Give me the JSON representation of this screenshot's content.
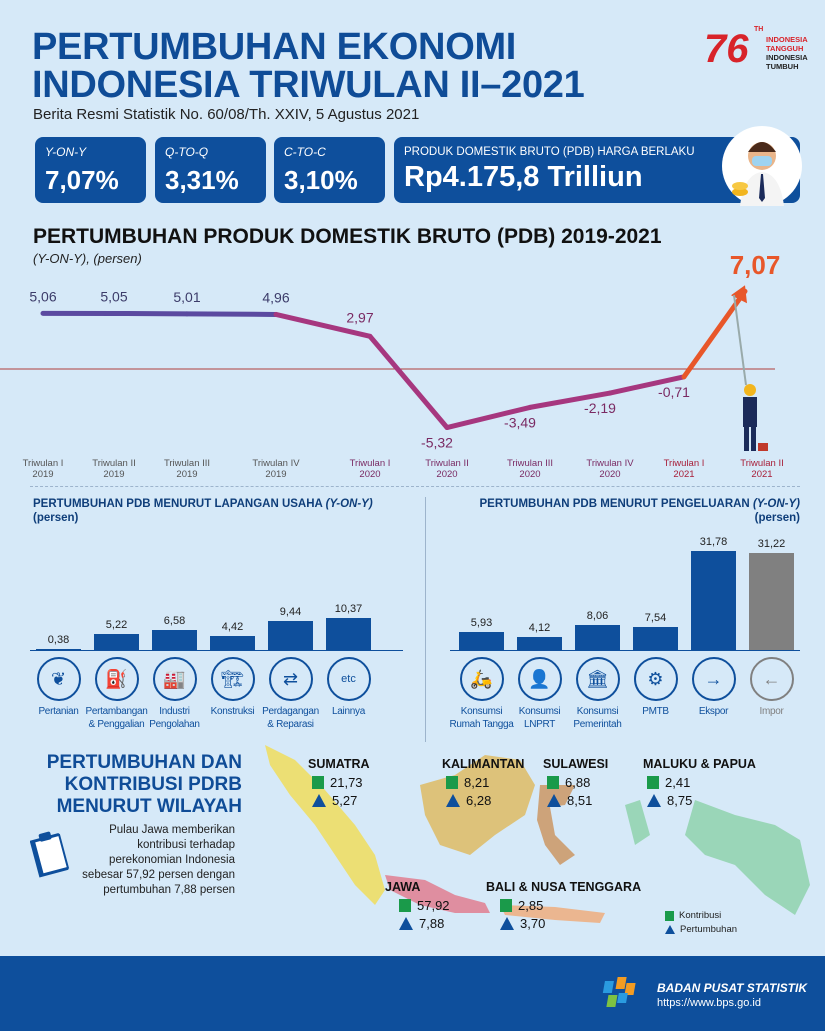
{
  "header": {
    "title_line1": "PERTUMBUHAN EKONOMI",
    "title_line2": "INDONESIA TRIWULAN II–2021",
    "subtitle": "Berita Resmi Statistik No. 60/08/Th. XXIV, 5 Agustus 2021",
    "logo": {
      "number": "76",
      "th": "TH",
      "line1": "INDONESIA",
      "line2": "TANGGUH",
      "line3": "INDONESIA",
      "line4": "TUMBUH"
    }
  },
  "cards": [
    {
      "label": "Y-ON-Y",
      "value": "7,07%"
    },
    {
      "label": "Q-TO-Q",
      "value": "3,31%"
    },
    {
      "label": "C-TO-C",
      "value": "3,10%"
    },
    {
      "label": "PRODUK DOMESTIK BRUTO (PDB) HARGA BERLAKU",
      "value": "Rp4.175,8 Trilliun"
    }
  ],
  "chart_data": [
    {
      "type": "line",
      "title": "PERTUMBUHAN PRODUK DOMESTIK BRUTO (PDB) 2019-2021",
      "subtitle": "(Y-ON-Y), (persen)",
      "categories": [
        [
          "Triwulan I",
          "2019"
        ],
        [
          "Triwulan II",
          "2019"
        ],
        [
          "Triwulan III",
          "2019"
        ],
        [
          "Triwulan IV",
          "2019"
        ],
        [
          "Triwulan I",
          "2020"
        ],
        [
          "Triwulan II",
          "2020"
        ],
        [
          "Triwulan III",
          "2020"
        ],
        [
          "Triwulan IV",
          "2020"
        ],
        [
          "Triwulan I",
          "2021"
        ],
        [
          "Triwulan II",
          "2021"
        ]
      ],
      "values": [
        5.06,
        5.05,
        5.01,
        4.96,
        2.97,
        -5.32,
        -3.49,
        -2.19,
        -0.71,
        7.07
      ],
      "labels": [
        "5,06",
        "5,05",
        "5,01",
        "4,96",
        "2,97",
        "-5,32",
        "-3,49",
        "-2,19",
        "-0,71",
        "7,07"
      ],
      "colors": {
        "2019": "#5b4aa0",
        "2020": "#a6377f",
        "2021": "#e8572a"
      },
      "zero_line": true
    },
    {
      "type": "bar",
      "title": "PERTUMBUHAN PDB MENURUT LAPANGAN USAHA",
      "title_em": "(Y-ON-Y)",
      "ylabel": "(persen)",
      "categories": [
        [
          "Pertanian",
          ""
        ],
        [
          "Pertambangan",
          "& Penggalian"
        ],
        [
          "Industri",
          "Pengolahan"
        ],
        [
          "Konstruksi",
          ""
        ],
        [
          "Perdagangan",
          "& Reparasi"
        ],
        [
          "Lainnya",
          ""
        ]
      ],
      "icons": [
        "leaf-icon",
        "oil-pump-icon",
        "factory-icon",
        "crane-icon",
        "trade-icon",
        "etc-icon"
      ],
      "icon_text": [
        "❦",
        "⛽",
        "🏭",
        "🏗",
        "⇄",
        "etc"
      ],
      "values": [
        0.38,
        5.22,
        6.58,
        4.42,
        9.44,
        10.37
      ],
      "labels": [
        "0,38",
        "5,22",
        "6,58",
        "4,42",
        "9,44",
        "10,37"
      ],
      "color": "#0e4f9c"
    },
    {
      "type": "bar",
      "title": "PERTUMBUHAN PDB MENURUT PENGELUARAN",
      "title_em": "(Y-ON-Y)",
      "ylabel": "(persen)",
      "categories": [
        [
          "Konsumsi",
          "Rumah Tangga"
        ],
        [
          "Konsumsi",
          "LNPRT"
        ],
        [
          "Konsumsi",
          "Pemerintah"
        ],
        [
          "PMTB",
          ""
        ],
        [
          "Ekspor",
          ""
        ],
        [
          "Impor",
          ""
        ]
      ],
      "icons": [
        "household-icon",
        "person-icon",
        "government-building-icon",
        "robot-arm-icon",
        "export-ship-icon",
        "import-ship-icon"
      ],
      "icon_text": [
        "🛵",
        "👤",
        "🏛",
        "⚙",
        "→",
        "←"
      ],
      "values": [
        5.93,
        4.12,
        8.06,
        7.54,
        31.78,
        31.22
      ],
      "labels": [
        "5,93",
        "4,12",
        "8,06",
        "7,54",
        "31,78",
        "31,22"
      ],
      "colors": [
        "#0e4f9c",
        "#0e4f9c",
        "#0e4f9c",
        "#0e4f9c",
        "#0e4f9c",
        "#808080"
      ]
    }
  ],
  "regional": {
    "title_lines": [
      "PERTUMBUHAN DAN",
      "KONTRIBUSI PDRB",
      "MENURUT WILAYAH"
    ],
    "note": "Pulau Jawa memberikan kontribusi terhadap perekonomian Indonesia sebesar 57,92 persen dengan pertumbuhan 7,88 persen",
    "regions": [
      {
        "name": "SUMATRA",
        "kontribusi": "21,73",
        "pertumbuhan": "5,27"
      },
      {
        "name": "KALIMANTAN",
        "kontribusi": "8,21",
        "pertumbuhan": "6,28"
      },
      {
        "name": "SULAWESI",
        "kontribusi": "6,88",
        "pertumbuhan": "8,51"
      },
      {
        "name": "MALUKU & PAPUA",
        "kontribusi": "2,41",
        "pertumbuhan": "8,75"
      },
      {
        "name": "JAWA",
        "kontribusi": "57,92",
        "pertumbuhan": "7,88"
      },
      {
        "name": "BALI & NUSA TENGGARA",
        "kontribusi": "2,85",
        "pertumbuhan": "3,70"
      }
    ],
    "legend": {
      "kontribusi": "Kontribusi",
      "pertumbuhan": "Pertumbuhan"
    },
    "colors": {
      "kontribusi": "#1a9a4a",
      "pertumbuhan": "#0e4f9c"
    }
  },
  "footer": {
    "org": "BADAN PUSAT STATISTIK",
    "url": "https://www.bps.go.id"
  }
}
